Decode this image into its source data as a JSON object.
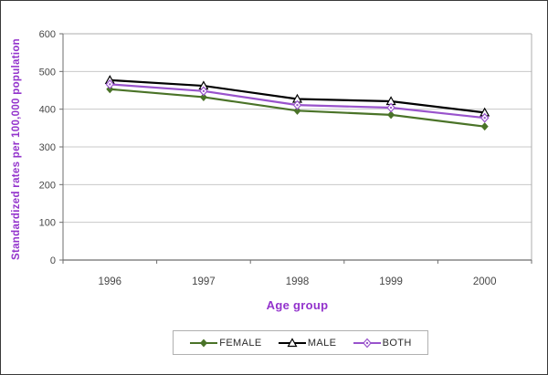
{
  "chart_data": {
    "type": "line",
    "title": "",
    "xlabel": "Age group",
    "ylabel": "Standardized rates per 100,000 population",
    "categories": [
      "1996",
      "1997",
      "1998",
      "1999",
      "2000"
    ],
    "series": [
      {
        "name": "FEMALE",
        "values": [
          453,
          432,
          396,
          385,
          354
        ],
        "color": "#4a7328",
        "marker": "diamond-filled"
      },
      {
        "name": "MALE",
        "values": [
          477,
          462,
          427,
          421,
          391
        ],
        "color": "#000000",
        "marker": "triangle-open"
      },
      {
        "name": "BOTH",
        "values": [
          466,
          448,
          411,
          404,
          377
        ],
        "color": "#9953cc",
        "marker": "diamond-open"
      }
    ],
    "ylim": [
      0,
      600
    ],
    "yticks": [
      0,
      100,
      200,
      300,
      400,
      500,
      600
    ],
    "grid": true,
    "legend_position": "bottom"
  },
  "colors": {
    "axis_title": "#9333cc",
    "tick_label": "#474747",
    "gridline": "#c8c8c8",
    "axis_line": "#6e6e6e",
    "plot_border": "#aeaeae",
    "legend_border": "#b0b0b0",
    "figure_border": "#3a3a3a",
    "background": "#ffffff"
  }
}
